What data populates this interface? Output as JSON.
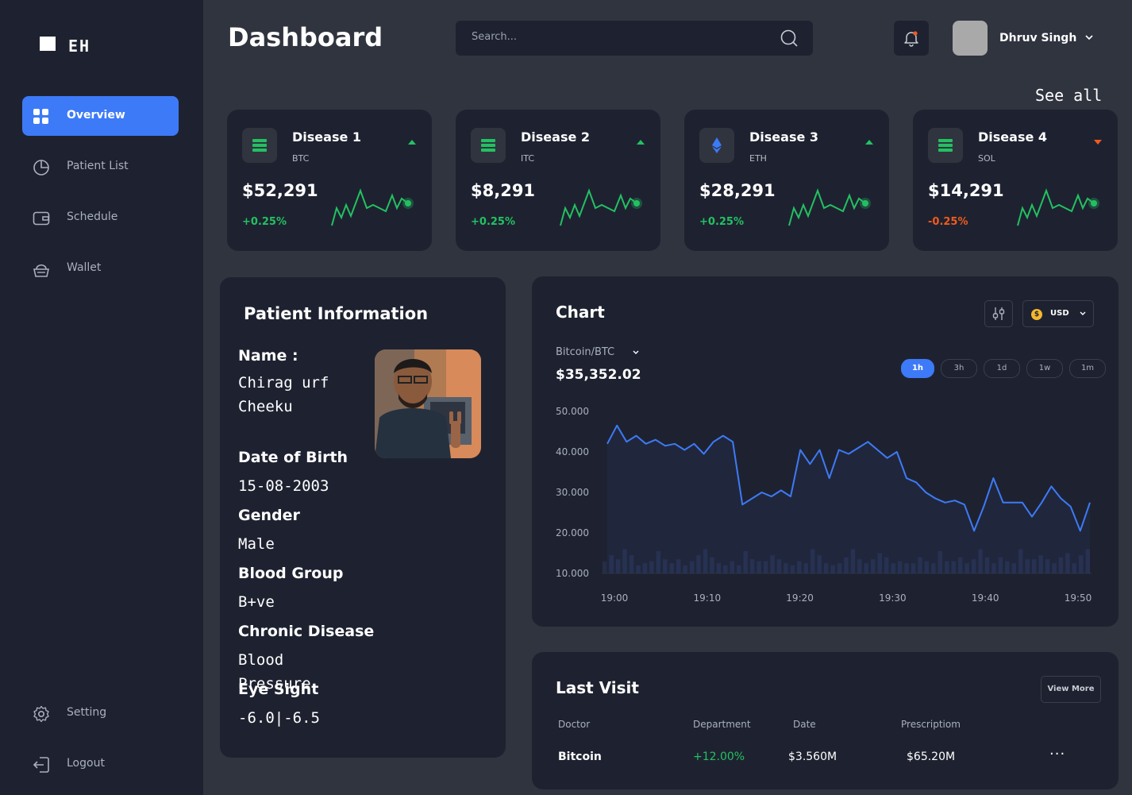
{
  "brand": {
    "logo_text": "EH"
  },
  "sidebar": {
    "items": [
      {
        "label": "Overview",
        "icon": "grid-icon",
        "active": true
      },
      {
        "label": "Patient List",
        "icon": "pie-chart-icon"
      },
      {
        "label": "Schedule",
        "icon": "wallet-card-icon"
      },
      {
        "label": "Wallet",
        "icon": "basket-icon"
      }
    ],
    "bottom": [
      {
        "label": "Setting",
        "icon": "gear-icon"
      },
      {
        "label": "Logout",
        "icon": "logout-icon"
      }
    ]
  },
  "header": {
    "title": "Dashboard",
    "search_placeholder": "Search...",
    "user_name": "Dhruv Singh"
  },
  "cards_section": {
    "see_all": "See all"
  },
  "cards": [
    {
      "name": "Disease 1",
      "code": "BTC",
      "value": "$52,291",
      "change": "+0.25%",
      "trend": "up",
      "icon": "stack-icon"
    },
    {
      "name": "Disease 2",
      "code": "ITC",
      "value": "$8,291",
      "change": "+0.25%",
      "trend": "up",
      "icon": "stack-icon"
    },
    {
      "name": "Disease 3",
      "code": "ETH",
      "value": "$28,291",
      "change": "+0.25%",
      "trend": "up",
      "icon": "ethereum-icon"
    },
    {
      "name": "Disease 4",
      "code": "SOL",
      "value": "$14,291",
      "change": "-0.25%",
      "trend": "down",
      "icon": "stack-icon"
    }
  ],
  "patient": {
    "title": "Patient Information",
    "name_label": "Name :",
    "name_line1": "Chirag urf",
    "name_line2": "Cheeku",
    "dob_label": "Date of Birth",
    "dob": "15-08-2003",
    "gender_label": "Gender",
    "gender": "Male",
    "blood_label": "Blood Group",
    "blood": "B+ve",
    "chronic_label": "Chronic Disease",
    "chronic_line1": "Blood",
    "chronic_line2": "Pressure",
    "eye_label": "Eye Sight",
    "eye": "-6.0|-6.5"
  },
  "chart_panel": {
    "title": "Chart",
    "currency": "USD",
    "pair": "Bitcoin/BTC",
    "price": "$35,352.02",
    "timeframes": [
      "1h",
      "3h",
      "1d",
      "1w",
      "1m"
    ],
    "active_timeframe": "1h"
  },
  "chart_data": {
    "type": "line",
    "x_ticks": [
      "19:00",
      "19:10",
      "19:20",
      "19:30",
      "19:40",
      "19:50"
    ],
    "y_ticks": [
      "50.000",
      "40.000",
      "30.000",
      "20.000",
      "10.000"
    ],
    "ylim": [
      10000,
      50000
    ],
    "series": [
      {
        "values": [
          42000,
          46500,
          42500,
          44000,
          42000,
          43000,
          41500,
          42000,
          40500,
          42000,
          39500,
          42500,
          44000,
          42500,
          27000,
          28500,
          30000,
          29000,
          30500,
          29000,
          40500,
          37000,
          40500,
          33500,
          40500,
          39500,
          41000,
          42500,
          40500,
          38500,
          40000,
          33500,
          32500,
          30000,
          28500,
          27500,
          28000,
          27000,
          20500,
          26500,
          33500,
          27500,
          27500,
          27500,
          24000,
          27500,
          31500,
          28500,
          26500,
          20500,
          27500
        ]
      },
      {
        "type": "bar",
        "values": [
          13000,
          14500,
          13500,
          16000,
          14500,
          12000,
          12500,
          13000,
          15500,
          13500,
          12500,
          13500,
          12000,
          13000,
          14500,
          16000,
          14000,
          12500,
          12000,
          13000,
          12000,
          15500,
          13500,
          13000,
          13000,
          14500,
          13500,
          12500,
          12000,
          13000,
          12500,
          16000,
          14500,
          12500,
          12000,
          12500,
          14000,
          16000,
          13500,
          12500,
          13500,
          15000,
          14000,
          12500,
          13000,
          12500,
          12500,
          14000,
          13000,
          12500,
          15500,
          13000,
          13000,
          14000,
          12500,
          13500,
          16000,
          14000,
          12500,
          14000,
          13000,
          12500,
          16000,
          13500,
          13500,
          14500,
          13500,
          12500,
          14000,
          15000,
          12500,
          14500,
          16000
        ]
      }
    ]
  },
  "last_visit": {
    "title": "Last Visit",
    "view_more": "View More",
    "columns": [
      "Doctor",
      "Department",
      "Date",
      "Prescriptiom"
    ],
    "rows": [
      [
        "Bitcoin",
        "+12.00%",
        "$3.560M",
        "$65.20M"
      ]
    ]
  },
  "colors": {
    "accent": "#3d7af7",
    "up": "#23c162",
    "down": "#f25a1e",
    "panel": "#1e2230",
    "background": "#30343f"
  }
}
